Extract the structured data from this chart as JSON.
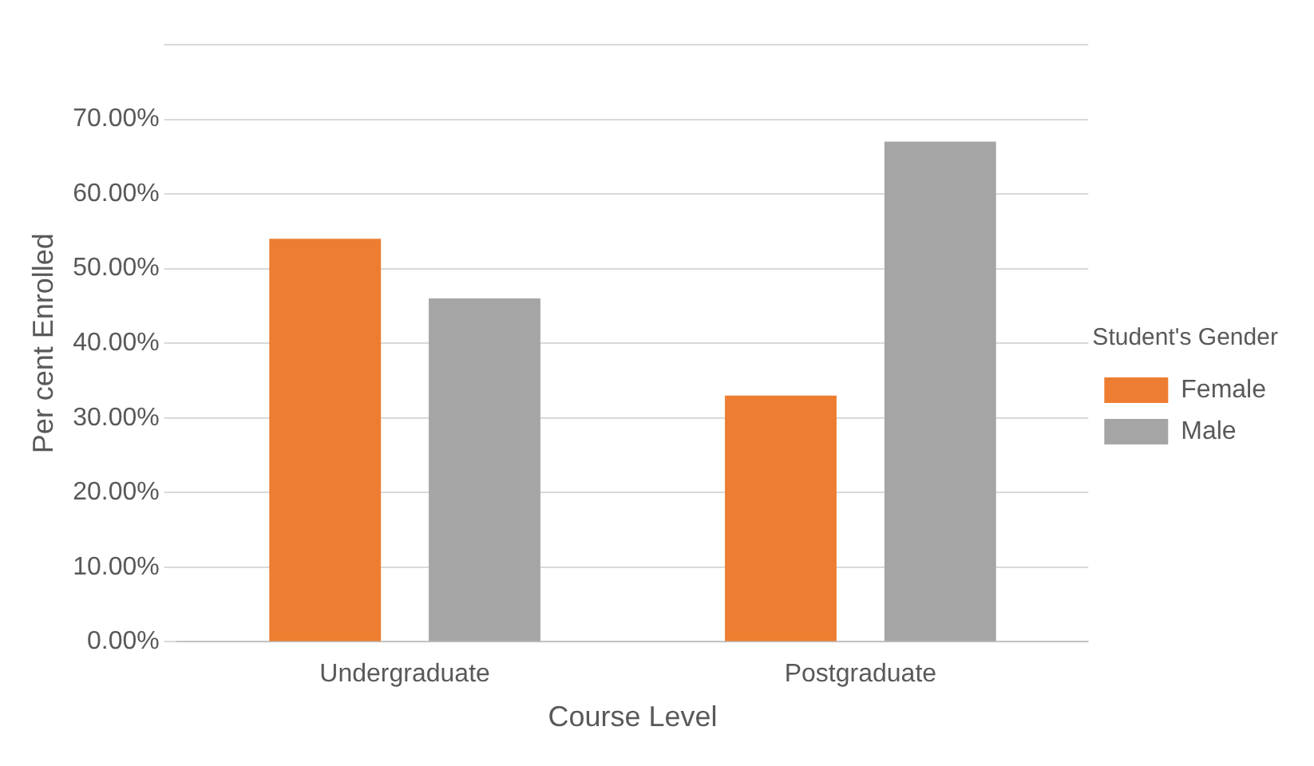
{
  "chart_data": {
    "type": "bar",
    "xlabel": "Course Level",
    "ylabel": "Per cent Enrolled",
    "legend_title": "Student's Gender",
    "categories": [
      "Undergraduate",
      "Postgraduate"
    ],
    "series": [
      {
        "name": "Female",
        "color": "#ed7d31",
        "values": [
          54,
          33
        ]
      },
      {
        "name": "Male",
        "color": "#a5a5a5",
        "values": [
          46,
          67
        ]
      }
    ],
    "ylim": [
      0,
      80
    ],
    "yticks": [
      {
        "value": 0,
        "label": "0.00%"
      },
      {
        "value": 10,
        "label": "10.00%"
      },
      {
        "value": 20,
        "label": "20.00%"
      },
      {
        "value": 30,
        "label": "30.00%"
      },
      {
        "value": 40,
        "label": "40.00%"
      },
      {
        "value": 50,
        "label": "50.00%"
      },
      {
        "value": 60,
        "label": "60.00%"
      },
      {
        "value": 70,
        "label": "70.00%"
      },
      {
        "value": 80,
        "label": null
      }
    ],
    "grid": "y",
    "legend": "right"
  }
}
